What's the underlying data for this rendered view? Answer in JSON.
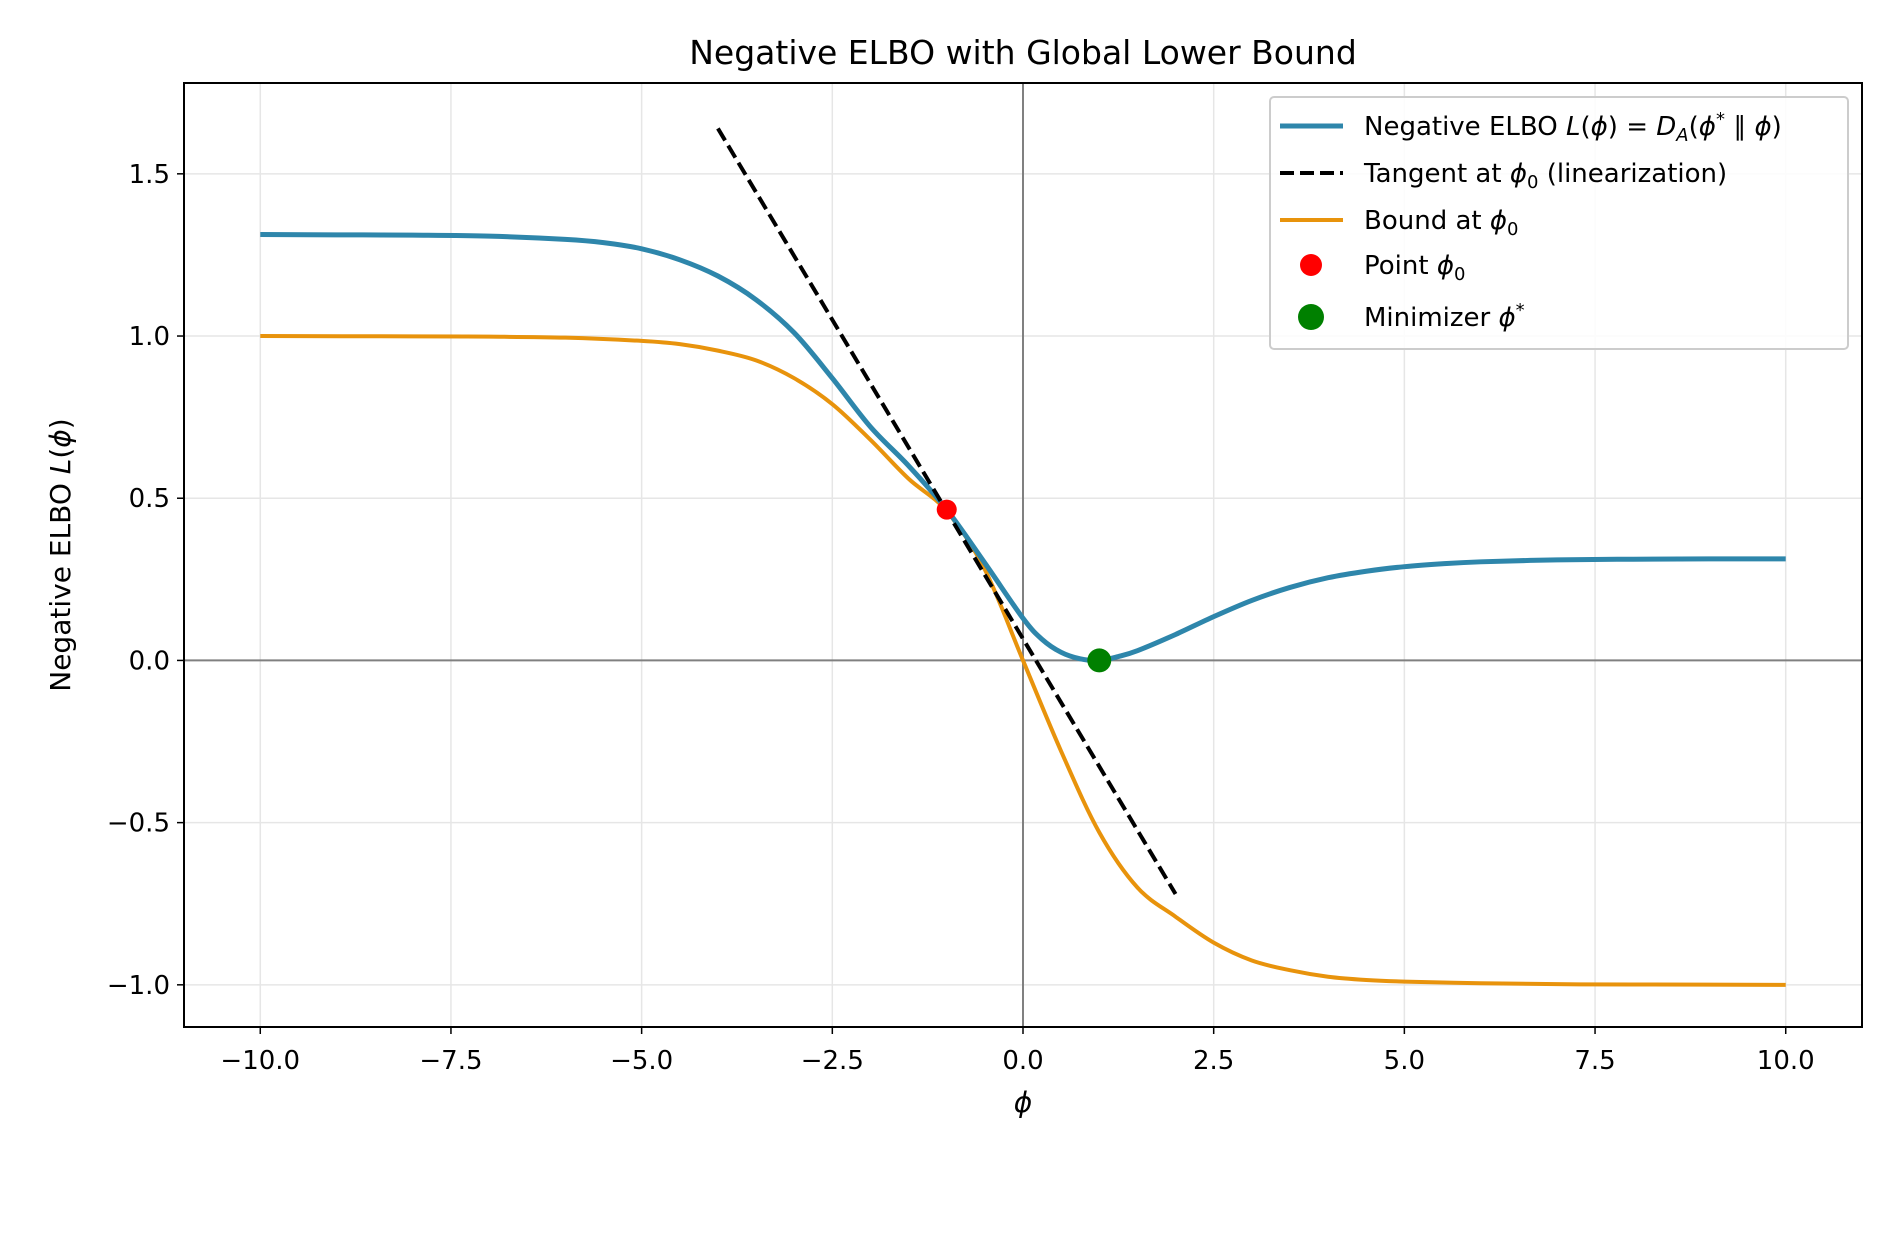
{
  "chart_data": {
    "type": "line",
    "title": "Negative ELBO with Global Lower Bound",
    "xlabel": "ϕ",
    "ylabel": "Negative ELBO  L(ϕ)",
    "xlim": [
      -11.0,
      11.0
    ],
    "ylim": [
      -1.13,
      1.78
    ],
    "xticks": [
      -10,
      -7.5,
      -5,
      -2.5,
      0,
      2.5,
      5,
      7.5,
      10
    ],
    "xtick_labels": [
      "−10.0",
      "−7.5",
      "−5.0",
      "−2.5",
      "0.0",
      "2.5",
      "5.0",
      "7.5",
      "10.0"
    ],
    "yticks": [
      -1.0,
      -0.5,
      0.0,
      0.5,
      1.0,
      1.5
    ],
    "ytick_labels": [
      "−1.0",
      "−0.5",
      "0.0",
      "0.5",
      "1.0",
      "1.5"
    ],
    "grid": true,
    "legend_position": "top-right",
    "series": [
      {
        "name": "Negative ELBO  L(ϕ) = D_A(ϕ* ∥ ϕ)",
        "color": "#2e86ab",
        "style": "solid",
        "x": [
          -10,
          -9,
          -8,
          -7,
          -6,
          -5.5,
          -5,
          -4.5,
          -4,
          -3.5,
          -3,
          -2.5,
          -2,
          -1.5,
          -1,
          -0.5,
          0,
          0.25,
          0.5,
          0.75,
          1,
          1.25,
          1.5,
          2,
          2.5,
          3,
          3.5,
          4,
          4.5,
          5,
          5.5,
          6,
          7,
          8,
          9,
          10
        ],
        "y": [
          1.313,
          1.312,
          1.311,
          1.308,
          1.298,
          1.288,
          1.269,
          1.235,
          1.185,
          1.112,
          1.01,
          0.87,
          0.72,
          0.6,
          0.465,
          0.3,
          0.13,
          0.065,
          0.025,
          0.005,
          0.0,
          0.012,
          0.03,
          0.08,
          0.135,
          0.185,
          0.225,
          0.255,
          0.275,
          0.289,
          0.298,
          0.304,
          0.31,
          0.312,
          0.313,
          0.313
        ]
      },
      {
        "name": "Tangent at ϕ₀ (linearization)",
        "color": "#000000",
        "style": "dashed",
        "x": [
          -4,
          2
        ],
        "y": [
          1.64,
          -0.72
        ]
      },
      {
        "name": "Bound at ϕ₀",
        "color": "#e8930c",
        "style": "solid",
        "x": [
          -10,
          -8,
          -7,
          -6,
          -5,
          -4.5,
          -4,
          -3.5,
          -3,
          -2.5,
          -2,
          -1.5,
          -1,
          -0.5,
          0,
          0.5,
          1,
          1.5,
          2,
          2.5,
          3,
          3.5,
          4,
          4.5,
          5,
          6,
          7,
          8,
          10
        ],
        "y": [
          1.0,
          0.999,
          0.998,
          0.995,
          0.985,
          0.975,
          0.955,
          0.925,
          0.87,
          0.79,
          0.68,
          0.56,
          0.46,
          0.28,
          0.0,
          -0.28,
          -0.53,
          -0.7,
          -0.79,
          -0.87,
          -0.925,
          -0.955,
          -0.975,
          -0.985,
          -0.99,
          -0.995,
          -0.998,
          -0.999,
          -1.0
        ]
      }
    ],
    "points": [
      {
        "name": "Point ϕ₀",
        "color": "#ff0000",
        "x": -1.0,
        "y": 0.465
      },
      {
        "name": "Minimizer ϕ*",
        "color": "#008000",
        "x": 1.0,
        "y": 0.0
      }
    ]
  }
}
